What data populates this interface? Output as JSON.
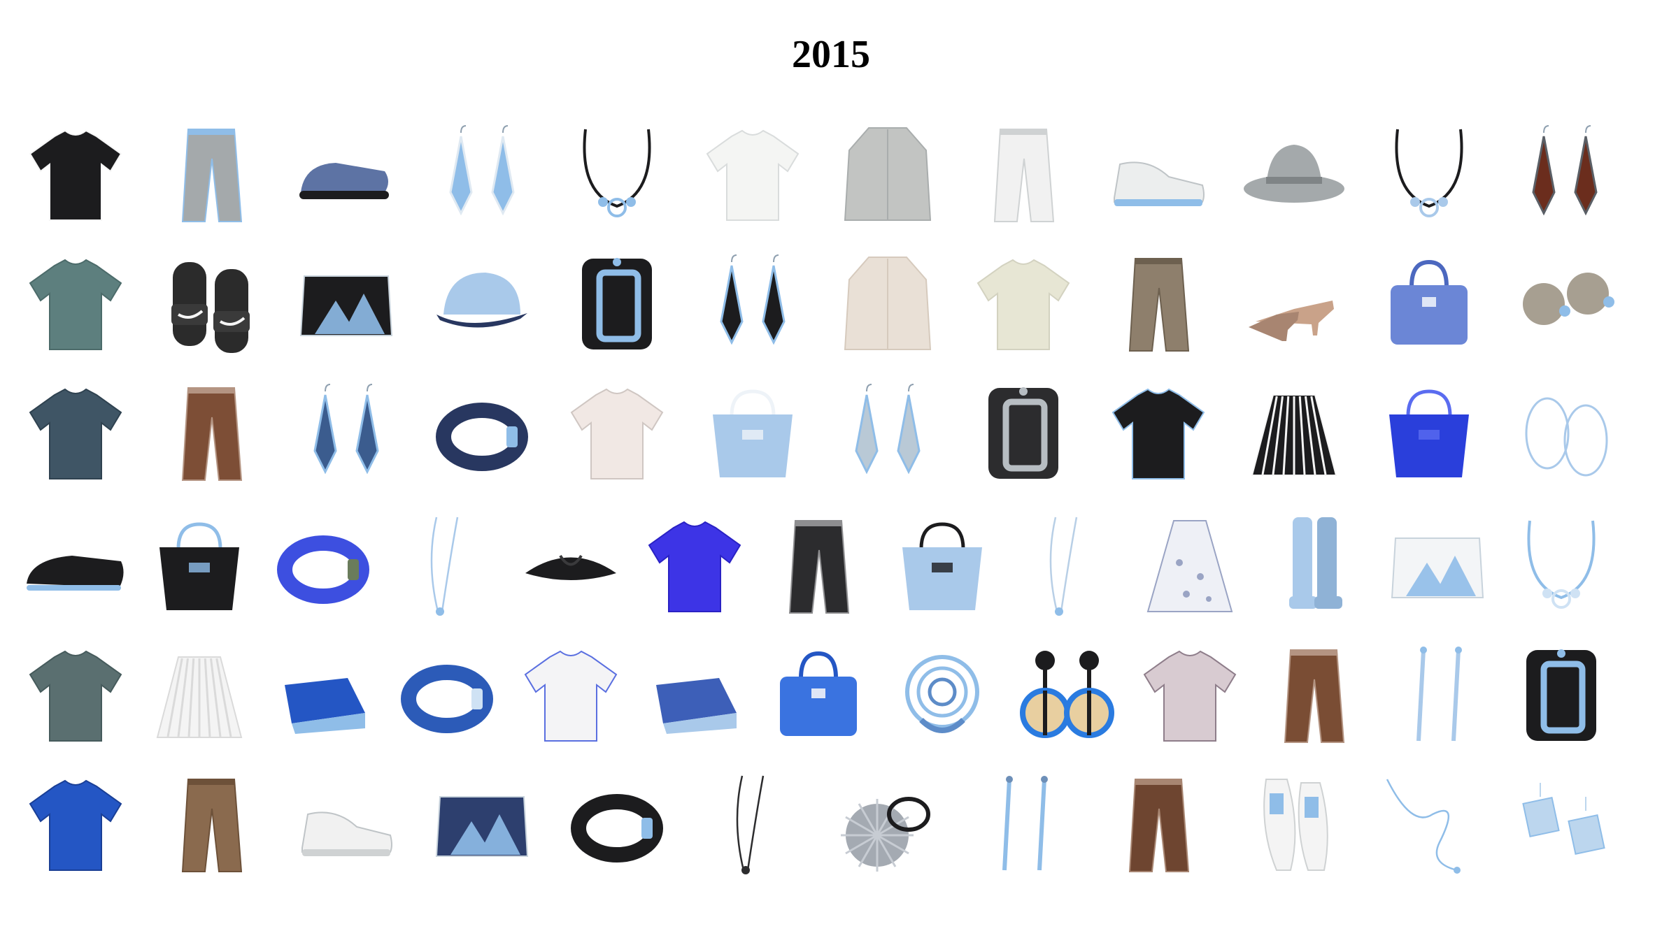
{
  "title": "2015",
  "colors": {
    "black": "#1c1c1e",
    "white": "#f6f6f6",
    "gray": "#a4a9ab",
    "light_blue": "#a9c9ea",
    "sky_blue": "#8fbde8",
    "royal_blue": "#3d4fe0",
    "cobalt": "#2456c4",
    "teal": "#5d7f7e",
    "slate": "#3f5565",
    "beige": "#e9e0d6",
    "cream": "#e7e6d4",
    "brown": "#7d4e36",
    "khaki": "#8e7f6c",
    "tan": "#c9a289",
    "navy": "#283760"
  },
  "rows": [
    {
      "items": [
        {
          "name": "black-cami-layered-top-icon",
          "shape": "top",
          "color": "#1c1c1e",
          "accent": "#f6f6f6"
        },
        {
          "name": "gray-wide-pants-icon",
          "shape": "pants",
          "color": "#a4a9ab",
          "accent": "#8fbde8"
        },
        {
          "name": "fur-slingback-sandal-icon",
          "shape": "shoe",
          "color": "#5d73a4",
          "accent": "#1c1c1e"
        },
        {
          "name": "chain-crystal-earrings-icon",
          "shape": "earrings",
          "color": "#8fbde8",
          "accent": "#dfe9f2"
        },
        {
          "name": "ring-choker-necklace-icon",
          "shape": "necklace",
          "color": "#1c1c1e",
          "accent": "#8fbde8"
        },
        {
          "name": "white-blouse-icon",
          "shape": "top",
          "color": "#f4f5f3",
          "accent": "#d9dcdc"
        },
        {
          "name": "gray-long-cardigan-icon",
          "shape": "coat",
          "color": "#c2c4c2",
          "accent": "#a9adad"
        },
        {
          "name": "white-skinny-pants-icon",
          "shape": "pants",
          "color": "#f1f1f1",
          "accent": "#cfd2d3"
        },
        {
          "name": "white-canvas-sneakers-icon",
          "shape": "sneaker",
          "color": "#eceeee",
          "accent": "#8fbde8"
        },
        {
          "name": "gray-fedora-hat-icon",
          "shape": "hat",
          "color": "#a4a9ab",
          "accent": "#7f8486"
        },
        {
          "name": "ribbon-bijou-necklace-icon",
          "shape": "necklace",
          "color": "#1c1c1e",
          "accent": "#a9c9ea"
        },
        {
          "name": "leaf-drop-earrings-icon",
          "shape": "earrings",
          "color": "#6b2d1d",
          "accent": "#5a5f66"
        }
      ]
    },
    {
      "items": [
        {
          "name": "teal-off-shoulder-top-icon",
          "shape": "top",
          "color": "#5d7f7e",
          "accent": "#4c6b6a"
        },
        {
          "name": "nike-slide-sandals-icon",
          "shape": "slides",
          "color": "#2b2b2b",
          "accent": "#f6f6f6"
        },
        {
          "name": "knit-mountain-clutch-icon",
          "shape": "clutch",
          "color": "#1c1c1e",
          "accent": "#8fbde8"
        },
        {
          "name": "light-blue-cap-icon",
          "shape": "cap",
          "color": "#a9c9ea",
          "accent": "#283760"
        },
        {
          "name": "wide-buckle-cuff-icon",
          "shape": "cuff",
          "color": "#1c1c1e",
          "accent": "#8fbde8"
        },
        {
          "name": "triangle-drop-earrings-icon",
          "shape": "earrings",
          "color": "#1c1c1e",
          "accent": "#8fbde8"
        },
        {
          "name": "beige-no-collar-coat-icon",
          "shape": "coat",
          "color": "#e9e0d6",
          "accent": "#d6cabd"
        },
        {
          "name": "cream-knit-sweater-icon",
          "shape": "top",
          "color": "#e7e6d4",
          "accent": "#d3d2c0"
        },
        {
          "name": "khaki-skinny-pants-icon",
          "shape": "pants",
          "color": "#8e7f6c",
          "accent": "#6d604f"
        },
        {
          "name": "nude-pointed-pumps-icon",
          "shape": "pumps",
          "color": "#c9a289",
          "accent": "#a88571"
        },
        {
          "name": "blue-top-handle-bag-icon",
          "shape": "bag",
          "color": "#6b86d6",
          "accent": "#4c68bf"
        },
        {
          "name": "double-pearl-earrings-icon",
          "shape": "pearls",
          "color": "#a79f91",
          "accent": "#8fbde8"
        }
      ]
    },
    {
      "items": [
        {
          "name": "slate-knit-vest-icon",
          "shape": "top",
          "color": "#3f5565",
          "accent": "#2f4250"
        },
        {
          "name": "brown-distressed-jeans-icon",
          "shape": "pants",
          "color": "#7d4e36",
          "accent": "#b49482"
        },
        {
          "name": "feather-tassel-earrings-icon",
          "shape": "earrings",
          "color": "#3b5c8e",
          "accent": "#8fbde8"
        },
        {
          "name": "navy-bangle-bracelet-icon",
          "shape": "bangle",
          "color": "#283760",
          "accent": "#8fbde8"
        },
        {
          "name": "champion-white-tee-icon",
          "shape": "top",
          "color": "#f1e8e4",
          "accent": "#cfc6c2"
        },
        {
          "name": "fringe-tote-bag-icon",
          "shape": "tote",
          "color": "#a9c9ea",
          "accent": "#eef3f8"
        },
        {
          "name": "crystal-drop-earrings-icon",
          "shape": "earrings",
          "color": "#b9c9d6",
          "accent": "#8fbde8"
        },
        {
          "name": "black-gray-wide-cuff-icon",
          "shape": "cuff",
          "color": "#2c2c2e",
          "accent": "#b7bdc2"
        },
        {
          "name": "black-bijou-cardigan-icon",
          "shape": "top",
          "color": "#1c1c1e",
          "accent": "#8fbde8"
        },
        {
          "name": "black-stripe-skirt-icon",
          "shape": "skirt",
          "color": "#1c1c1e",
          "accent": "#f6f6f6"
        },
        {
          "name": "royal-blue-mesh-tote-icon",
          "shape": "tote",
          "color": "#2a3fdb",
          "accent": "#5a6cf0"
        },
        {
          "name": "wire-hoop-earrings-icon",
          "shape": "hoops",
          "color": "#a9c9ea",
          "accent": "#a9c9ea"
        }
      ]
    },
    {
      "items": [
        {
          "name": "black-espadrille-slip-ons-icon",
          "shape": "slipon",
          "color": "#1c1c1e",
          "accent": "#8fbde8"
        },
        {
          "name": "black-nylon-tote-icon",
          "shape": "tote",
          "color": "#1c1c1e",
          "accent": "#8fbde8"
        },
        {
          "name": "beaded-bracelet-stack-icon",
          "shape": "bangle",
          "color": "#3d4fe0",
          "accent": "#6a7c5b"
        },
        {
          "name": "long-pendant-necklace-icon",
          "shape": "pendant",
          "color": "#a9c9ea",
          "accent": "#8fbde8"
        },
        {
          "name": "black-turban-headband-icon",
          "shape": "headband",
          "color": "#1c1c1e",
          "accent": "#3a3a3c"
        },
        {
          "name": "royal-blue-v-neck-sweater-icon",
          "shape": "top",
          "color": "#3d34e6",
          "accent": "#2a22c4"
        },
        {
          "name": "check-cropped-pants-icon",
          "shape": "pants",
          "color": "#2c2c2e",
          "accent": "#8e8e90"
        },
        {
          "name": "blue-canvas-tote-icon",
          "shape": "tote",
          "color": "#a9c9ea",
          "accent": "#1c1c1e"
        },
        {
          "name": "crystal-pendant-necklace-icon",
          "shape": "pendant",
          "color": "#b8cfe6",
          "accent": "#8fbde8"
        },
        {
          "name": "floral-print-dress-icon",
          "shape": "dress",
          "color": "#eef0f6",
          "accent": "#9aa4c4"
        },
        {
          "name": "light-blue-knee-boots-icon",
          "shape": "boots",
          "color": "#a9c9ea",
          "accent": "#8fb2d6"
        },
        {
          "name": "white-chain-shoulder-bag-icon",
          "shape": "clutch",
          "color": "#f3f5f7",
          "accent": "#8fbde8"
        },
        {
          "name": "bijou-station-necklace-icon",
          "shape": "necklace",
          "color": "#8fbde8",
          "accent": "#cfe2f4"
        }
      ]
    },
    {
      "items": [
        {
          "name": "teal-short-sleeve-blouse-icon",
          "shape": "top",
          "color": "#5a6f70",
          "accent": "#465b5c"
        },
        {
          "name": "white-lace-skirt-icon",
          "shape": "skirt",
          "color": "#f4f4f4",
          "accent": "#dadada"
        },
        {
          "name": "cobalt-wedge-sandals-icon",
          "shape": "wedge",
          "color": "#2456c4",
          "accent": "#8fbde8"
        },
        {
          "name": "blue-bar-cuff-icon",
          "shape": "bangle",
          "color": "#2c5bb8",
          "accent": "#cfe2f4"
        },
        {
          "name": "stripe-panel-tee-icon",
          "shape": "top",
          "color": "#f4f4f6",
          "accent": "#5a6fe0"
        },
        {
          "name": "denim-platform-sandals-icon",
          "shape": "wedge",
          "color": "#3d5fb8",
          "accent": "#a9c9ea"
        },
        {
          "name": "blue-bucket-bag-icon",
          "shape": "bag",
          "color": "#3a73e0",
          "accent": "#2456c4"
        },
        {
          "name": "maze-cocktail-ring-icon",
          "shape": "ring",
          "color": "#8fbde8",
          "accent": "#5d8cc8"
        },
        {
          "name": "circle-disc-earrings-icon",
          "shape": "discs",
          "color": "#1c1c1e",
          "accent": "#2a7be0"
        },
        {
          "name": "plaid-sleeveless-top-icon",
          "shape": "top",
          "color": "#d8cbd1",
          "accent": "#8e7d8a"
        },
        {
          "name": "brown-crash-jeans-icon",
          "shape": "pants",
          "color": "#7a4d34",
          "accent": "#b49482"
        },
        {
          "name": "bar-drop-earrings-icon",
          "shape": "bars",
          "color": "#a9c9ea",
          "accent": "#8fbde8"
        },
        {
          "name": "black-buckle-cuff-icon",
          "shape": "cuff",
          "color": "#1c1c1e",
          "accent": "#8fbde8"
        }
      ]
    },
    {
      "items": [
        {
          "name": "cobalt-knit-tunic-icon",
          "shape": "top",
          "color": "#2456c4",
          "accent": "#1a3f96"
        },
        {
          "name": "camel-chino-pants-icon",
          "shape": "pants",
          "color": "#8a6a4e",
          "accent": "#6d5139"
        },
        {
          "name": "white-leather-sneakers-icon",
          "shape": "sneaker",
          "color": "#f1f1f1",
          "accent": "#cfd2d3"
        },
        {
          "name": "print-shoulder-clutch-icon",
          "shape": "clutch",
          "color": "#2d3f6e",
          "accent": "#8fbde8"
        },
        {
          "name": "black-leather-cuff-icon",
          "shape": "bangle",
          "color": "#1c1c1e",
          "accent": "#8fbde8"
        },
        {
          "name": "lariat-necklace-icon",
          "shape": "pendant",
          "color": "#2c2c2e",
          "accent": "#2c2c2e"
        },
        {
          "name": "fur-pompom-hair-tie-icon",
          "shape": "pompom",
          "color": "#a4aab2",
          "accent": "#1c1c1e"
        },
        {
          "name": "tassel-drop-earrings-icon",
          "shape": "bars",
          "color": "#8fbde8",
          "accent": "#6d8fb8"
        },
        {
          "name": "brown-ripped-jeans-icon",
          "shape": "pants",
          "color": "#6e4530",
          "accent": "#a88672"
        },
        {
          "name": "white-kiltie-flats-icon",
          "shape": "flats",
          "color": "#f4f4f4",
          "accent": "#8fbde8"
        },
        {
          "name": "delicate-chain-necklace-icon",
          "shape": "chain",
          "color": "#8fbde8",
          "accent": "#8fbde8"
        },
        {
          "name": "blue-square-drop-earrings-icon",
          "shape": "squares",
          "color": "#bcd6ee",
          "accent": "#8fbde8"
        }
      ]
    }
  ]
}
